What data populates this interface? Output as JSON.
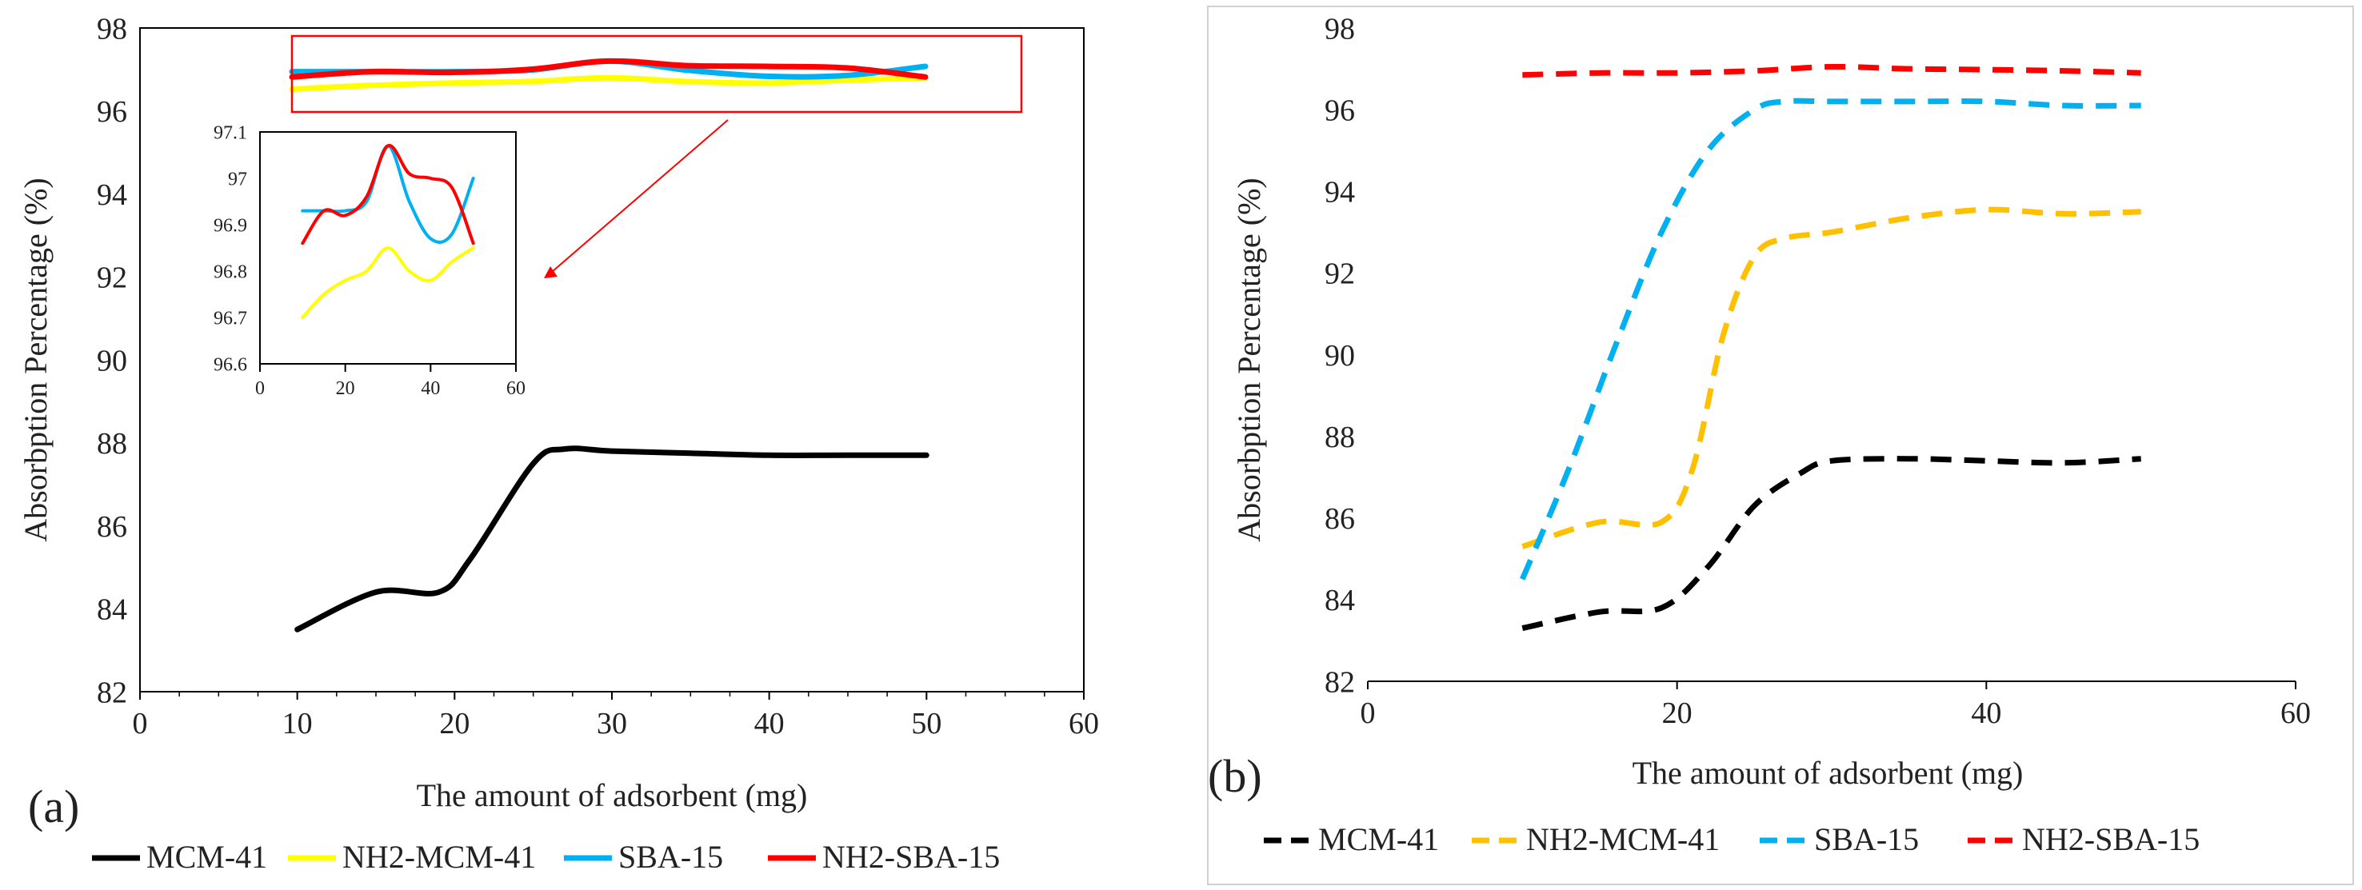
{
  "chart_data": [
    {
      "type": "line",
      "panel_label": "(a)",
      "xlabel": "The amount of adsorbent (mg)",
      "ylabel": "Absorbption Percentage (%)",
      "xlim": [
        0,
        60
      ],
      "ylim": [
        82,
        98
      ],
      "xticks": [
        "0",
        "10",
        "20",
        "30",
        "40",
        "50",
        "60"
      ],
      "yticks": [
        "82",
        "84",
        "86",
        "88",
        "90",
        "92",
        "94",
        "96",
        "98"
      ],
      "line_style": "solid",
      "legend_position": "bottom",
      "series": [
        {
          "name": "MCM-41",
          "color": "#000000",
          "x": [
            10,
            15,
            19,
            21,
            25,
            27,
            30,
            35,
            40,
            45,
            50
          ],
          "y": [
            83.5,
            84.4,
            84.4,
            85.2,
            87.5,
            87.85,
            87.8,
            87.75,
            87.7,
            87.7,
            87.7
          ]
        },
        {
          "name": "NH2-MCM-41",
          "color": "#FFFF00",
          "x": [
            10,
            15,
            20,
            25,
            30,
            35,
            40,
            45,
            50
          ],
          "y": [
            96.7,
            96.75,
            96.78,
            96.8,
            96.85,
            96.8,
            96.78,
            96.82,
            96.85
          ]
        },
        {
          "name": "SBA-15",
          "color": "#00B0F0",
          "x": [
            10,
            15,
            20,
            25,
            30,
            35,
            40,
            45,
            50
          ],
          "y": [
            96.93,
            96.93,
            96.93,
            96.95,
            97.07,
            96.95,
            96.87,
            96.88,
            97.0
          ]
        },
        {
          "name": "NH2-SBA-15",
          "color": "#FF0000",
          "x": [
            10,
            15,
            20,
            25,
            30,
            35,
            40,
            45,
            50
          ],
          "y": [
            96.86,
            96.93,
            96.92,
            96.96,
            97.07,
            97.01,
            97.0,
            96.98,
            96.86
          ]
        }
      ],
      "inset": {
        "xlim": [
          0,
          60
        ],
        "ylim": [
          96.6,
          97.1
        ],
        "xticks": [
          "0",
          "20",
          "40",
          "60"
        ],
        "yticks": [
          "96.6",
          "96.7",
          "96.8",
          "96.9",
          "97",
          "97.1"
        ]
      }
    },
    {
      "type": "line",
      "panel_label": "(b)",
      "xlabel": "The amount of adsorbent (mg)",
      "ylabel": "Absorbption Percentage (%)",
      "xlim": [
        0,
        60
      ],
      "ylim": [
        82,
        98
      ],
      "xticks": [
        "0",
        "20",
        "40",
        "60"
      ],
      "yticks": [
        "82",
        "84",
        "86",
        "88",
        "90",
        "92",
        "94",
        "96",
        "98"
      ],
      "line_style": "dashed",
      "legend_position": "bottom",
      "series": [
        {
          "name": "MCM-41",
          "color": "#000000",
          "x": [
            10,
            15,
            19,
            22,
            25,
            28,
            30,
            35,
            40,
            45,
            50
          ],
          "y": [
            83.3,
            83.7,
            83.8,
            84.8,
            86.3,
            87.1,
            87.4,
            87.45,
            87.4,
            87.35,
            87.45
          ]
        },
        {
          "name": "NH2-MCM-41",
          "color": "#FFC000",
          "x": [
            10,
            15,
            19,
            21,
            23,
            25,
            27,
            30,
            35,
            40,
            45,
            50
          ],
          "y": [
            85.3,
            85.9,
            85.9,
            87.2,
            90.5,
            92.4,
            92.85,
            93.0,
            93.35,
            93.55,
            93.45,
            93.5
          ]
        },
        {
          "name": "SBA-15",
          "color": "#00B0F0",
          "x": [
            10,
            13,
            16,
            19,
            22,
            25,
            27,
            30,
            35,
            40,
            45,
            50
          ],
          "y": [
            84.5,
            87.2,
            90.2,
            93.0,
            95.0,
            96.0,
            96.2,
            96.2,
            96.2,
            96.2,
            96.1,
            96.1
          ]
        },
        {
          "name": "NH2-SBA-15",
          "color": "#FF0000",
          "x": [
            10,
            15,
            20,
            25,
            30,
            35,
            40,
            45,
            50
          ],
          "y": [
            96.85,
            96.9,
            96.9,
            96.95,
            97.05,
            97.0,
            96.98,
            96.95,
            96.9
          ]
        }
      ]
    }
  ]
}
